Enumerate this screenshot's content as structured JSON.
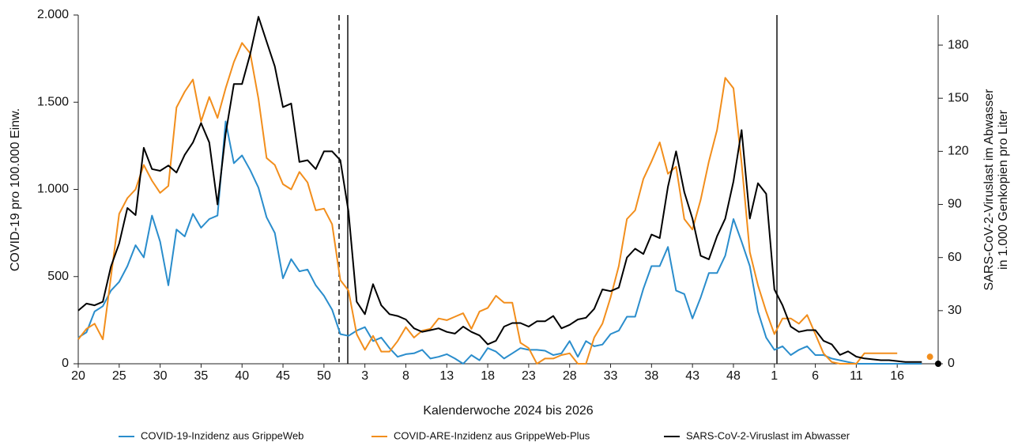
{
  "chart_data": {
    "type": "line",
    "xlabel": "Kalenderwoche 2024 bis 2026",
    "ylabel": "COVID-19 pro 100.000 Einw.",
    "y2label": [
      "SARS-CoV-2-Viruslast im Abwasser",
      "in 1.000 Genkopien pro Liter"
    ],
    "categories": [
      "20",
      null,
      null,
      null,
      null,
      "25",
      null,
      null,
      null,
      null,
      "30",
      null,
      null,
      null,
      null,
      "35",
      null,
      null,
      null,
      null,
      "40",
      null,
      null,
      null,
      null,
      "45",
      null,
      null,
      null,
      null,
      "50",
      null,
      null,
      null,
      null,
      "3",
      null,
      null,
      null,
      null,
      "8",
      null,
      null,
      null,
      null,
      "13",
      null,
      null,
      null,
      null,
      "18",
      null,
      null,
      null,
      null,
      "23",
      null,
      null,
      null,
      null,
      "28",
      null,
      null,
      null,
      null,
      "33",
      null,
      null,
      null,
      null,
      "38",
      null,
      null,
      null,
      null,
      "43",
      null,
      null,
      null,
      null,
      "48",
      null,
      null,
      null,
      null,
      "1",
      null,
      null,
      null,
      null,
      "6",
      null,
      null,
      null,
      null,
      "11",
      null,
      null,
      null,
      null,
      "16",
      null,
      null,
      null,
      null,
      null
    ],
    "ylim": [
      0,
      2000
    ],
    "yticks": [
      0,
      500,
      {
        "value": 1000,
        "label": "1.000"
      },
      {
        "value": 1500,
        "label": "1.500"
      },
      {
        "value": 2000,
        "label": "2.000"
      }
    ],
    "y2lim": [
      0,
      197
    ],
    "y2ticks": [
      0,
      30,
      60,
      90,
      120,
      150,
      180
    ],
    "series": [
      {
        "name": "COVID-19-Inzidenz aus GrippeWeb",
        "color": "#2a8dcc",
        "axis": "y",
        "values": [
          150,
          180,
          300,
          330,
          420,
          470,
          560,
          680,
          610,
          850,
          700,
          450,
          770,
          730,
          860,
          780,
          830,
          850,
          1390,
          1150,
          1195,
          1110,
          1010,
          840,
          750,
          490,
          600,
          530,
          540,
          450,
          390,
          310,
          170,
          160,
          190,
          210,
          130,
          150,
          90,
          40,
          55,
          60,
          80,
          30,
          40,
          55,
          30,
          0,
          50,
          20,
          90,
          70,
          30,
          60,
          90,
          80,
          80,
          75,
          50,
          60,
          130,
          40,
          130,
          100,
          110,
          170,
          190,
          270,
          270,
          430,
          560,
          560,
          670,
          420,
          400,
          260,
          380,
          520,
          520,
          620,
          830,
          700,
          560,
          300,
          150,
          80,
          100,
          50,
          80,
          100,
          50,
          50,
          30,
          20,
          10,
          0,
          0,
          0,
          0,
          0,
          0,
          0,
          0,
          0,
          null,
          null
        ]
      },
      {
        "name": "COVID-ARE-Inzidenz aus GrippeWeb-Plus",
        "color": "#f28e1c",
        "axis": "y",
        "values": [
          140,
          200,
          230,
          140,
          500,
          860,
          950,
          1000,
          1140,
          1050,
          980,
          1020,
          1470,
          1560,
          1630,
          1390,
          1530,
          1410,
          1580,
          1730,
          1840,
          1780,
          1520,
          1180,
          1140,
          1030,
          1000,
          1100,
          1040,
          880,
          890,
          800,
          480,
          420,
          170,
          80,
          160,
          70,
          70,
          130,
          210,
          150,
          190,
          200,
          260,
          250,
          270,
          290,
          200,
          300,
          320,
          390,
          350,
          350,
          120,
          90,
          0,
          30,
          30,
          50,
          60,
          0,
          0,
          150,
          230,
          380,
          560,
          830,
          880,
          1060,
          1160,
          1270,
          1090,
          1130,
          830,
          770,
          940,
          1160,
          1340,
          1640,
          1580,
          1150,
          640,
          450,
          300,
          170,
          260,
          260,
          230,
          280,
          170,
          60,
          10,
          0,
          0,
          0,
          60,
          60,
          60,
          60,
          60,
          null,
          null,
          null,
          40,
          null
        ]
      },
      {
        "name": "SARS-CoV-2-Viruslast im Abwasser",
        "color": "#000000",
        "axis": "y2",
        "values": [
          30,
          34,
          33,
          35,
          55,
          68,
          88,
          84,
          122,
          110,
          109,
          112,
          108,
          118,
          125,
          136,
          125,
          90,
          130,
          158,
          158,
          175,
          196,
          182,
          168,
          145,
          147,
          114,
          115,
          110,
          120,
          120,
          115,
          86,
          35,
          28,
          45,
          33,
          28,
          27,
          25,
          20,
          18,
          19,
          20,
          18,
          17,
          21,
          18,
          16,
          11,
          13,
          21,
          23,
          23,
          21,
          24,
          24,
          27,
          20,
          22,
          25,
          26,
          31,
          42,
          41,
          43,
          60,
          65,
          62,
          73,
          71,
          100,
          120,
          97,
          82,
          61,
          59,
          72,
          82,
          103,
          132,
          82,
          102,
          96,
          42,
          33,
          21,
          18,
          19,
          19,
          13,
          11,
          5,
          7,
          4,
          3,
          2.5,
          2,
          2,
          1.5,
          1,
          1,
          1,
          null,
          0
        ]
      }
    ]
  }
}
